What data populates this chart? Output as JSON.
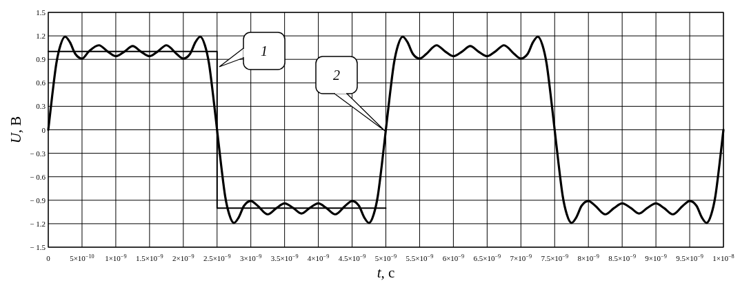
{
  "chart_data": {
    "type": "line",
    "xlabel": "t, с",
    "ylabel": "U, В",
    "xlim": [
      0,
      1e-08
    ],
    "ylim": [
      -1.5,
      1.5
    ],
    "xticks": [
      0,
      {
        "value": 5e-10,
        "label": "5×10$^{−10}$"
      },
      {
        "value": 1e-09,
        "label": "1×10$^{−9}$"
      },
      {
        "value": 1.5e-09,
        "label": "1.5×10$^{−9}$"
      },
      {
        "value": 2e-09,
        "label": "2×10$^{−9}$"
      },
      {
        "value": 2.5e-09,
        "label": "2.5×10$^{−9}$"
      },
      {
        "value": 3e-09,
        "label": "3×10$^{−9}$"
      },
      {
        "value": 3.5e-09,
        "label": "3.5×10$^{−9}$"
      },
      {
        "value": 4e-09,
        "label": "4×10$^{−9}$"
      },
      {
        "value": 4.5e-09,
        "label": "4.5×10$^{−9}$"
      },
      {
        "value": 5e-09,
        "label": "5×10$^{−9}$"
      },
      {
        "value": 5.5e-09,
        "label": "5.5×10$^{−9}$"
      },
      {
        "value": 6e-09,
        "label": "6×10$^{−9}$"
      },
      {
        "value": 6.5e-09,
        "label": "6.5×10$^{−9}$"
      },
      {
        "value": 7e-09,
        "label": "7×10$^{−9}$"
      },
      {
        "value": 7.5e-09,
        "label": "7.5×10$^{−9}$"
      },
      {
        "value": 8e-09,
        "label": "8×10$^{−9}$"
      },
      {
        "value": 8.5e-09,
        "label": "8.5×10$^{−9}$"
      },
      {
        "value": 9e-09,
        "label": "9×10$^{−9}$"
      },
      {
        "value": 9.5e-09,
        "label": "9.5×10$^{−9}$"
      },
      {
        "value": 1e-08,
        "label": "1×10$^{−8}$"
      }
    ],
    "yticks": [
      {
        "value": -1.5,
        "label": "− 1.5"
      },
      {
        "value": -1.2,
        "label": "− 1.2"
      },
      {
        "value": -0.9,
        "label": "− 0.9"
      },
      {
        "value": -0.6,
        "label": "− 0.6"
      },
      {
        "value": -0.3,
        "label": "− 0.3"
      },
      0,
      0.3,
      0.6,
      0.9,
      1.2,
      1.5
    ],
    "grid": true,
    "marker": "none",
    "line_style": "solid",
    "series": [
      {
        "color": "#000000",
        "x": [
          0,
          2.5e-09,
          2.5e-09,
          5e-09
        ],
        "values": [
          1,
          1,
          -1,
          -1
        ]
      },
      {
        "color": "#000000",
        "x": [
          0,
          6e-11,
          1.2e-10,
          1.8e-10,
          2.5e-10,
          3.2e-10,
          4e-10,
          5e-10,
          6e-10,
          7.5e-10,
          8.8e-10,
          1e-09,
          1.13e-09,
          1.25e-09,
          1.37e-09,
          1.5e-09,
          1.62e-09,
          1.75e-09,
          1.9e-09,
          2e-09,
          2.1e-09,
          2.18e-09,
          2.25e-09,
          2.32e-09,
          2.38e-09,
          2.44e-09,
          2.5e-09,
          2.56e-09,
          2.62e-09,
          2.68e-09,
          2.75e-09,
          2.82e-09,
          2.9e-09,
          3e-09,
          3.1e-09,
          3.25e-09,
          3.38e-09,
          3.5e-09,
          3.63e-09,
          3.75e-09,
          3.87e-09,
          4e-09,
          4.12e-09,
          4.25e-09,
          4.4e-09,
          4.5e-09,
          4.6e-09,
          4.68e-09,
          4.75e-09,
          4.82e-09,
          4.88e-09,
          4.94e-09,
          5e-09,
          5.06e-09,
          5.12e-09,
          5.18e-09,
          5.25e-09,
          5.32e-09,
          5.4e-09,
          5.5e-09,
          5.6e-09,
          5.75e-09,
          5.88e-09,
          6e-09,
          6.13e-09,
          6.25e-09,
          6.37e-09,
          6.5e-09,
          6.62e-09,
          6.75e-09,
          6.9e-09,
          7e-09,
          7.1e-09,
          7.18e-09,
          7.25e-09,
          7.32e-09,
          7.38e-09,
          7.44e-09,
          7.5e-09,
          7.56e-09,
          7.62e-09,
          7.68e-09,
          7.75e-09,
          7.82e-09,
          7.9e-09,
          8e-09,
          8.1e-09,
          8.25e-09,
          8.38e-09,
          8.5e-09,
          8.63e-09,
          8.75e-09,
          8.87e-09,
          9e-09,
          9.12e-09,
          9.25e-09,
          9.4e-09,
          9.5e-09,
          9.6e-09,
          9.68e-09,
          9.75e-09,
          9.82e-09,
          9.88e-09,
          9.94e-09,
          1e-08
        ],
        "values": [
          0,
          0.45,
          0.85,
          1.08,
          1.19,
          1.12,
          0.97,
          0.91,
          1.0,
          1.08,
          1.0,
          0.94,
          1.0,
          1.07,
          1.0,
          0.94,
          1.0,
          1.08,
          0.97,
          0.91,
          0.97,
          1.12,
          1.19,
          1.08,
          0.85,
          0.45,
          0,
          -0.45,
          -0.85,
          -1.08,
          -1.19,
          -1.12,
          -0.97,
          -0.91,
          -0.97,
          -1.08,
          -1.0,
          -0.94,
          -1.0,
          -1.07,
          -1.0,
          -0.94,
          -1.0,
          -1.08,
          -0.97,
          -0.91,
          -0.97,
          -1.12,
          -1.19,
          -1.08,
          -0.85,
          -0.45,
          0,
          0.45,
          0.85,
          1.08,
          1.19,
          1.12,
          0.97,
          0.91,
          0.97,
          1.08,
          1.0,
          0.94,
          1.0,
          1.07,
          1.0,
          0.94,
          1.0,
          1.08,
          0.97,
          0.91,
          0.97,
          1.12,
          1.19,
          1.08,
          0.85,
          0.45,
          0,
          -0.45,
          -0.85,
          -1.08,
          -1.19,
          -1.12,
          -0.97,
          -0.91,
          -0.97,
          -1.08,
          -1.0,
          -0.94,
          -1.0,
          -1.07,
          -1.0,
          -0.94,
          -1.0,
          -1.08,
          -0.97,
          -0.91,
          -0.97,
          -1.12,
          -1.19,
          -1.08,
          -0.85,
          -0.45,
          0
        ]
      }
    ],
    "annotations": [
      "1",
      "2"
    ]
  }
}
